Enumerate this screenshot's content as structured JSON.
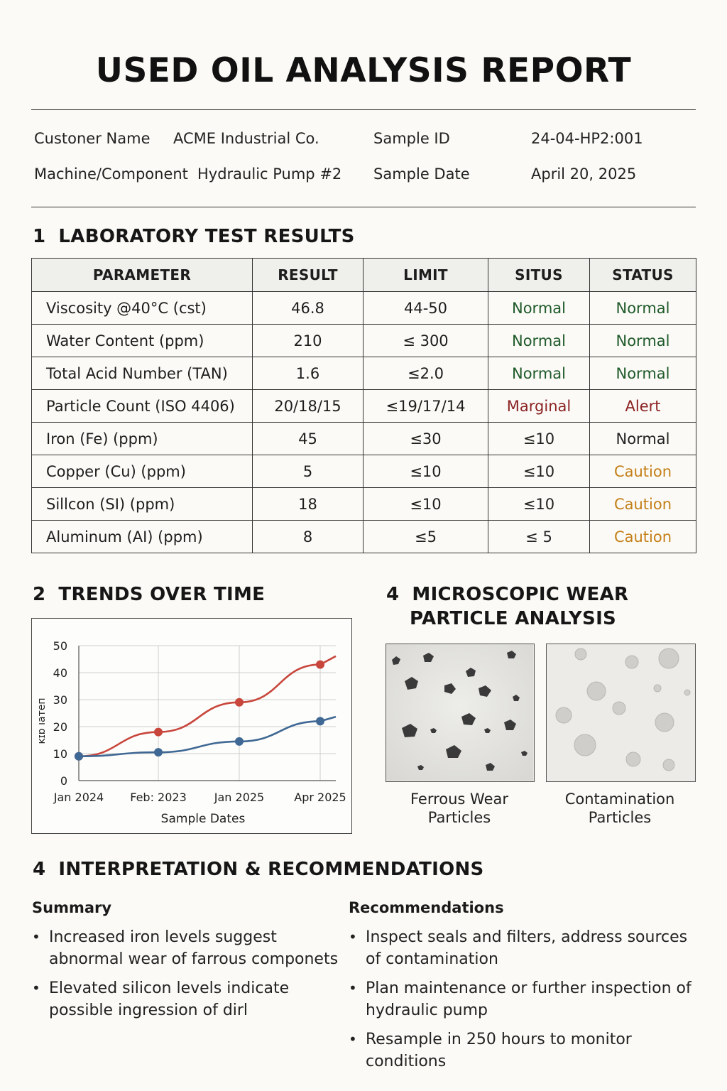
{
  "report": {
    "title": "USED OIL ANALYSIS REPORT"
  },
  "info": {
    "customer_label": "Custoner Name",
    "customer_value": "ACME Industrial Co.",
    "machine_label": "Machine/Component",
    "machine_value": "Hydraulic Pump #2",
    "sample_id_label": "Sample ID",
    "sample_id_value": "24-04-HP2:001",
    "sample_date_label": "Sample Date",
    "sample_date_value": "April 20, 2025"
  },
  "sections": {
    "lab": {
      "num": "1",
      "title": "LABORATORY TEST RESULTS"
    },
    "trends": {
      "num": "2",
      "title": "TRENDS OVER TIME"
    },
    "micro": {
      "num": "4",
      "title_line1": "MICROSCOPIC WEAR",
      "title_line2": "PARTICLE ANALYSIS"
    },
    "interp": {
      "num": "4",
      "title": "INTERPRETATION & RECOMMENDATIONS"
    }
  },
  "table": {
    "headers": [
      "PARAMETER",
      "RESULT",
      "LIMIT",
      "SITUS",
      "STATUS"
    ],
    "rows": [
      {
        "parameter": "Viscosity @40°C (cst)",
        "result": "46.8",
        "limit": "44-50",
        "situs": "Normal",
        "status": "Normal",
        "situs_tone": "normal",
        "status_tone": "normal"
      },
      {
        "parameter": "Water Content (ppm)",
        "result": "210",
        "limit": "≤ 300",
        "situs": "Normal",
        "status": "Normal",
        "situs_tone": "normal",
        "status_tone": "normal"
      },
      {
        "parameter": "Total Acid Number (TAN)",
        "result": "1.6",
        "limit": "≤2.0",
        "situs": "Normal",
        "status": "Normal",
        "situs_tone": "normal",
        "status_tone": "normal"
      },
      {
        "parameter": "Particle Count (ISO 4406)",
        "result": "20/18/15",
        "limit": "≤19/17/14",
        "situs": "Marginal",
        "status": "Alert",
        "situs_tone": "marginal",
        "status_tone": "alert"
      },
      {
        "parameter": "Iron (Fe) (ppm)",
        "result": "45",
        "limit": "≤30",
        "situs": "≤10",
        "status": "Normal",
        "situs_tone": "default",
        "status_tone": "default"
      },
      {
        "parameter": "Copper (Cu) (ppm)",
        "result": "5",
        "limit": "≤10",
        "situs": "≤10",
        "status": "Caution",
        "situs_tone": "default",
        "status_tone": "caution"
      },
      {
        "parameter": "Sillcon (SI) (ppm)",
        "result": "18",
        "limit": "≤10",
        "situs": "≤10",
        "status": "Caution",
        "situs_tone": "default",
        "status_tone": "caution"
      },
      {
        "parameter": "Aluminum (AI) (ppm)",
        "result": "8",
        "limit": "≤5",
        "situs": "≤ 5",
        "status": "Caution",
        "situs_tone": "default",
        "status_tone": "caution"
      }
    ]
  },
  "chart_data": {
    "type": "line",
    "title": "",
    "xlabel": "Sample Dates",
    "ylabel": "ĸɪɒ ıaтeп",
    "categories": [
      "Jan 2024",
      "Feb: 2023",
      "Jan 2025",
      "Apr 2025"
    ],
    "ylim": [
      0,
      50
    ],
    "yticks": [
      0,
      10,
      20,
      30,
      40,
      50
    ],
    "grid": true,
    "series": [
      {
        "values": [
          9,
          18,
          29,
          43
        ],
        "color": "#c8463c"
      },
      {
        "values": [
          9,
          10.5,
          14.5,
          22
        ],
        "color": "#3f6894"
      }
    ]
  },
  "micro": {
    "captions": [
      {
        "line1": "Ferrous Wear",
        "line2": "Particles"
      },
      {
        "line1": "Contamination",
        "line2": "Particles"
      }
    ]
  },
  "interpretation": {
    "summary_title": "Summary",
    "summary": [
      {
        "line1": "Increased iron levels suggest",
        "line2": "abnormal wear of farrous componets"
      },
      {
        "line1": "Elevated silicon levels indicate",
        "line2": "possible ingression of dirl"
      }
    ],
    "recommendations_title": "Recommendations",
    "recommendations": [
      {
        "line1": "Inspect seals and filters, address sources",
        "line2": "of contamination"
      },
      {
        "line1": "Plan maintenance or further inspection of",
        "line2": "hydraulic pump"
      },
      {
        "line1": "Resample in 250 hours to monitor conditions",
        "line2": ""
      }
    ]
  }
}
